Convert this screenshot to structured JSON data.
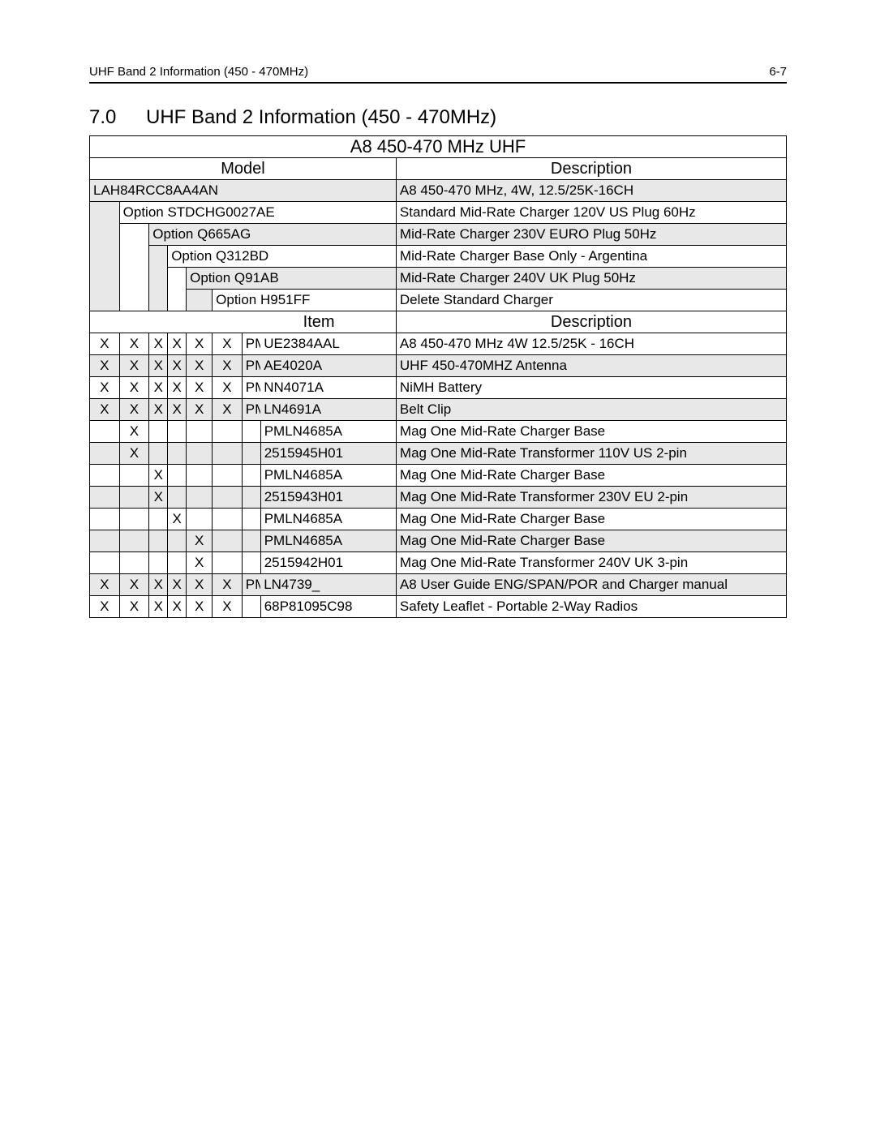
{
  "header": {
    "left": "UHF Band 2 Information (450 - 470MHz)",
    "right": "6-7"
  },
  "section": {
    "number": "7.0",
    "title": "UHF Band 2 Information (450 - 470MHz)"
  },
  "table": {
    "title": "A8 450-470 MHz UHF",
    "head_model": "Model",
    "head_desc": "Description",
    "head_item": "Item",
    "head_desc2": "Description",
    "models": [
      {
        "indent": 0,
        "label": "LAH84RCC8AA4AN",
        "desc": "A8 450-470 MHz, 4W, 12.5/25K-16CH",
        "shade": true
      },
      {
        "indent": 1,
        "label": "Option STDCHG0027AE",
        "desc": "Standard Mid-Rate Charger 120V US Plug 60Hz",
        "shade": false
      },
      {
        "indent": 2,
        "label": "Option Q665AG",
        "desc": "Mid-Rate Charger 230V EURO Plug 50Hz",
        "shade": true
      },
      {
        "indent": 3,
        "label": "Option Q312BD",
        "desc": "Mid-Rate Charger Base Only - Argentina",
        "shade": false
      },
      {
        "indent": 4,
        "label": "Option Q91AB",
        "desc": "Mid-Rate Charger 240V UK Plug 50Hz",
        "shade": true
      },
      {
        "indent": 5,
        "label": "Option H951FF",
        "desc": "Delete Standard Charger",
        "shade": false
      }
    ],
    "items": [
      {
        "marks": [
          "X",
          "X",
          "X",
          "X",
          "X",
          "X",
          ""
        ],
        "item_lead": "PM",
        "item": "UE2384AAL",
        "desc_lead": "A8 4",
        "desc": "50-470 MHz 4W 12.5/25K - 16CH",
        "shade": false
      },
      {
        "marks": [
          "X",
          "X",
          "X",
          "X",
          "X",
          "X",
          ""
        ],
        "item_lead": "PM",
        "item": "AE4020A",
        "desc_lead": "",
        "desc": "UHF 450-470MHZ Antenna",
        "shade": true
      },
      {
        "marks": [
          "X",
          "X",
          "X",
          "X",
          "X",
          "X",
          ""
        ],
        "item_lead": "PM",
        "item": "NN4071A",
        "desc_lead": "",
        "desc": "NiMH Battery",
        "shade": false
      },
      {
        "marks": [
          "X",
          "X",
          "X",
          "X",
          "X",
          "X",
          ""
        ],
        "item_lead": "PM",
        "item": "LN4691A",
        "desc_lead": "",
        "desc": "Belt Clip",
        "shade": true
      },
      {
        "marks": [
          "",
          "X",
          "",
          "",
          "",
          "",
          ""
        ],
        "item_lead": "",
        "item": "PMLN4685A",
        "desc_lead": "",
        "desc": "Mag One Mid-Rate Charger Base",
        "shade": false
      },
      {
        "marks": [
          "",
          "X",
          "",
          "",
          "",
          "",
          ""
        ],
        "item_lead": "",
        "item": "2515945H01",
        "desc_lead": "",
        "desc": "Mag One Mid-Rate Transformer 110V US 2-pin",
        "shade": true
      },
      {
        "marks": [
          "",
          "",
          "X",
          "",
          "",
          "",
          ""
        ],
        "item_lead": "",
        "item": "PMLN4685A",
        "desc_lead": "",
        "desc": "Mag One Mid-Rate Charger Base",
        "shade": false
      },
      {
        "marks": [
          "",
          "",
          "X",
          "",
          "",
          "",
          ""
        ],
        "item_lead": "",
        "item": "2515943H01",
        "desc_lead": "",
        "desc": "Mag One Mid-Rate Transformer 230V EU 2-pin",
        "shade": true
      },
      {
        "marks": [
          "",
          "",
          "",
          "X",
          "",
          "",
          ""
        ],
        "item_lead": "",
        "item": "PMLN4685A",
        "desc_lead": "",
        "desc": "Mag One Mid-Rate Charger Base",
        "shade": false
      },
      {
        "marks": [
          "",
          "",
          "",
          "",
          "X",
          "",
          ""
        ],
        "item_lead": "",
        "item": "PMLN4685A",
        "desc_lead": "",
        "desc": "Mag One Mid-Rate Charger Base",
        "shade": true
      },
      {
        "marks": [
          "",
          "",
          "",
          "",
          "X",
          "",
          ""
        ],
        "item_lead": "",
        "item": "2515942H01",
        "desc_lead": "",
        "desc": "Mag One Mid-Rate Transformer 240V UK 3-pin",
        "shade": false
      },
      {
        "marks": [
          "X",
          "X",
          "X",
          "X",
          "X",
          "X",
          ""
        ],
        "item_lead": "PM",
        "item": "LN4739_",
        "desc_lead": "",
        "desc": "A8 User Guide ENG/SPAN/POR and Charger manual",
        "shade": true
      },
      {
        "marks": [
          "X",
          "X",
          "X",
          "X",
          "X",
          "X",
          ""
        ],
        "item_lead": "",
        "item": "68P81095C98",
        "desc_lead": "",
        "desc": "Safety Leaflet - Portable 2-Way Radios",
        "shade": false
      }
    ]
  },
  "style": {
    "shade_color": "#e8e8e8",
    "border_color": "#000000",
    "bg_color": "#ffffff",
    "font_family": "Arial",
    "body_fontsize_pt": 13,
    "header_fontsize_pt": 11,
    "section_fontsize_pt": 18,
    "table_title_fontsize_pt": 16
  }
}
